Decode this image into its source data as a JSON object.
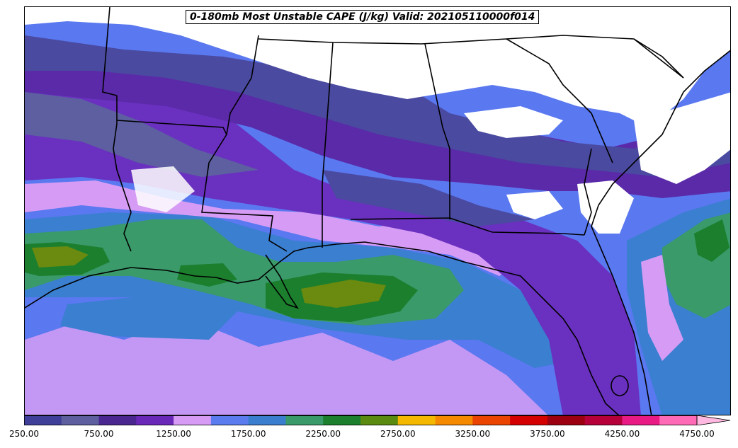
{
  "title": "0-180mb Most Unstable CAPE (J/kg) Valid: 202105110000f014",
  "colorbar": {
    "colors": [
      "#3f3f9a",
      "#5d5f9e",
      "#4a2790",
      "#6a28b8",
      "#d69cf5",
      "#5a7cef",
      "#3a7fcf",
      "#3a9a6a",
      "#1b7f2d",
      "#5b8a10",
      "#f5b800",
      "#f58a00",
      "#ea4400",
      "#d40000",
      "#9c0010",
      "#b5003a",
      "#ea1a84",
      "#ff6ab6"
    ],
    "extend_color": "#ffb8e0",
    "tick_labels": [
      "250.00",
      "750.00",
      "1250.00",
      "1750.00",
      "2250.00",
      "2750.00",
      "3250.00",
      "3750.00",
      "4250.00",
      "4750.00"
    ]
  },
  "map": {
    "region": "Southeastern United States / Gulf of Mexico",
    "fill_colors": {
      "low": "#4a4aa0",
      "med_low": "#5d5fa0",
      "purple": "#5a2aa8",
      "violet": "#6a30c0",
      "lilac": "#d69cf5",
      "blue": "#5a78f0",
      "steel": "#3a7fd0",
      "teal": "#3a9a6a",
      "green": "#1b7f2d",
      "olive": "#6a8a10",
      "land_clear": "#ffffff"
    }
  }
}
